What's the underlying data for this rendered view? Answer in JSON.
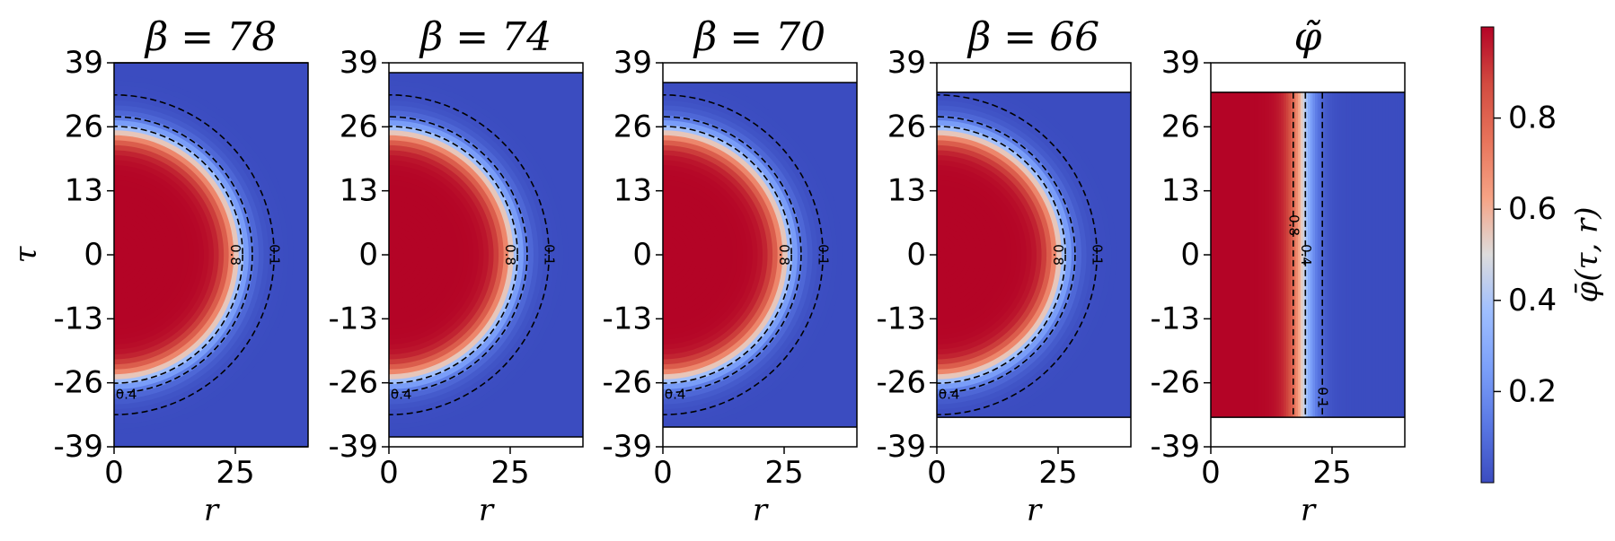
{
  "chart_data": {
    "type": "heatmap",
    "colormap": "coolwarm",
    "y_axis": {
      "label": "τ",
      "ticks": [
        "39",
        "26",
        "13",
        "0",
        "-13",
        "-26",
        "-39"
      ],
      "range": [
        -39,
        39
      ]
    },
    "x_axis": {
      "label": "r",
      "ticks": [
        "0",
        "25"
      ],
      "range": [
        0,
        40
      ]
    },
    "panels": [
      {
        "title": "β = 78",
        "tau_extent": 39,
        "bubble_radius": 26,
        "contours": [
          {
            "level": 0.1,
            "label": "0.1",
            "radius": 33
          },
          {
            "level": 0.4,
            "label": "0.4",
            "radius": 28.5
          },
          {
            "level": 0.8,
            "label": "0.8",
            "radius": 26.5
          }
        ]
      },
      {
        "title": "β = 74",
        "tau_extent": 37,
        "bubble_radius": 26,
        "contours": [
          {
            "level": 0.1,
            "label": "0.1",
            "radius": 33
          },
          {
            "level": 0.4,
            "label": "0.4",
            "radius": 28.5
          },
          {
            "level": 0.8,
            "label": "0.8",
            "radius": 26.5
          }
        ]
      },
      {
        "title": "β = 70",
        "tau_extent": 35,
        "bubble_radius": 26,
        "contours": [
          {
            "level": 0.1,
            "label": "0.1",
            "radius": 33
          },
          {
            "level": 0.4,
            "label": "0.4",
            "radius": 28.5
          },
          {
            "level": 0.8,
            "label": "0.8",
            "radius": 26.5
          }
        ]
      },
      {
        "title": "β = 66",
        "tau_extent": 33,
        "bubble_radius": 26,
        "contours": [
          {
            "level": 0.1,
            "label": "0.1",
            "radius": 33
          },
          {
            "level": 0.4,
            "label": "0.4",
            "radius": 28.5
          },
          {
            "level": 0.8,
            "label": "0.8",
            "radius": 26.5
          }
        ]
      },
      {
        "title": "φ̃",
        "tau_extent": 33,
        "wall_position": 19,
        "contours": [
          {
            "level": 0.8,
            "label": "0.8",
            "r": 17
          },
          {
            "level": 0.4,
            "label": "0.4",
            "r": 19.5
          },
          {
            "level": 0.1,
            "label": "0.1",
            "r": 23
          }
        ]
      }
    ],
    "colorbar": {
      "label": "φ̄(τ, r)",
      "ticks": [
        "0.2",
        "0.4",
        "0.6",
        "0.8"
      ],
      "tick_values": [
        0.2,
        0.4,
        0.6,
        0.8
      ],
      "range": [
        0,
        1
      ]
    }
  }
}
